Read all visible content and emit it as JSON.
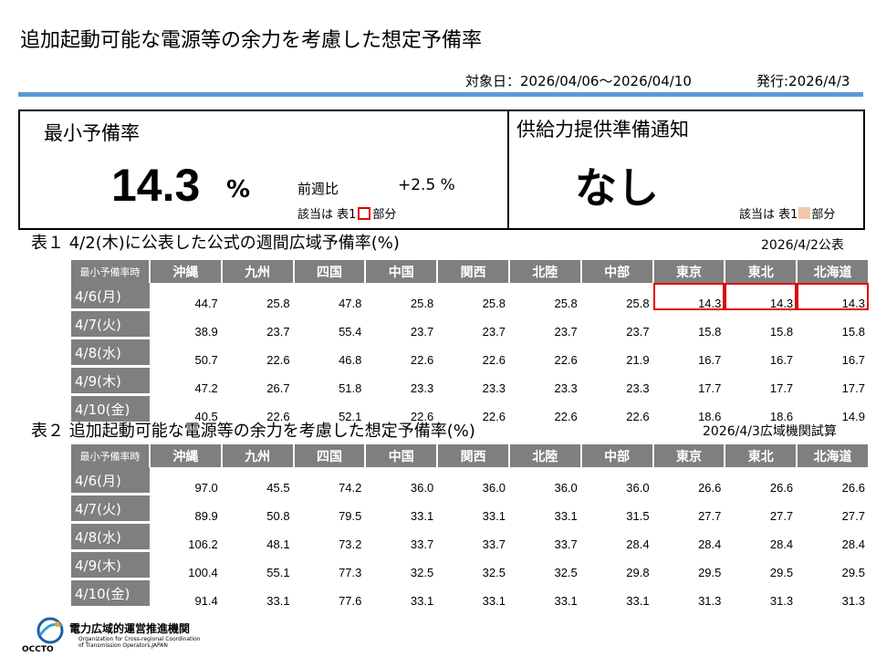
{
  "header": {
    "title": "追加起動可能な電源等の余力を考慮した想定予備率",
    "period": "対象日：2026/04/06～2026/04/10",
    "issued": "発行:2026/4/3"
  },
  "summary": {
    "min_label": "最小予備率",
    "min_value": "14.3",
    "min_unit": "%",
    "wow_label": "前週比",
    "wow_value": "+2.5 %",
    "applies_prefix": "該当は 表1",
    "applies_suffix": "部分",
    "supply_label": "供給力提供準備通知",
    "supply_value": "なし"
  },
  "colors": {
    "header_gray": "#7f7f7f",
    "highlight_red": "#e00000",
    "notice_peach": "#f4c7a8",
    "accent_blue": "#5b9bd5"
  },
  "table1": {
    "caption": "表１ 4/2(木)に公表した公式の週間広域予備率(%)",
    "date": "2026/4/2公表",
    "corner": "最小予備率時",
    "columns": [
      "沖縄",
      "九州",
      "四国",
      "中国",
      "関西",
      "北陸",
      "中部",
      "東京",
      "東北",
      "北海道"
    ],
    "rows": [
      {
        "day": "4/6(月)",
        "values": [
          "44.7",
          "25.8",
          "47.8",
          "25.8",
          "25.8",
          "25.8",
          "25.8",
          "14.3",
          "14.3",
          "14.3"
        ]
      },
      {
        "day": "4/7(火)",
        "values": [
          "38.9",
          "23.7",
          "55.4",
          "23.7",
          "23.7",
          "23.7",
          "23.7",
          "15.8",
          "15.8",
          "15.8"
        ]
      },
      {
        "day": "4/8(水)",
        "values": [
          "50.7",
          "22.6",
          "46.8",
          "22.6",
          "22.6",
          "22.6",
          "21.9",
          "16.7",
          "16.7",
          "16.7"
        ]
      },
      {
        "day": "4/9(木)",
        "values": [
          "47.2",
          "26.7",
          "51.8",
          "23.3",
          "23.3",
          "23.3",
          "23.3",
          "17.7",
          "17.7",
          "17.7"
        ]
      },
      {
        "day": "4/10(金)",
        "values": [
          "40.5",
          "22.6",
          "52.1",
          "22.6",
          "22.6",
          "22.6",
          "22.6",
          "18.6",
          "18.6",
          "14.9"
        ]
      }
    ]
  },
  "table2": {
    "caption": "表２ 追加起動可能な電源等の余力を考慮した想定予備率(%)",
    "date": "2026/4/3広域機関試算",
    "corner": "最小予備率時",
    "columns": [
      "沖縄",
      "九州",
      "四国",
      "中国",
      "関西",
      "北陸",
      "中部",
      "東京",
      "東北",
      "北海道"
    ],
    "rows": [
      {
        "day": "4/6(月)",
        "values": [
          "97.0",
          "45.5",
          "74.2",
          "36.0",
          "36.0",
          "36.0",
          "36.0",
          "26.6",
          "26.6",
          "26.6"
        ]
      },
      {
        "day": "4/7(火)",
        "values": [
          "89.9",
          "50.8",
          "79.5",
          "33.1",
          "33.1",
          "33.1",
          "31.5",
          "27.7",
          "27.7",
          "27.7"
        ]
      },
      {
        "day": "4/8(水)",
        "values": [
          "106.2",
          "48.1",
          "73.2",
          "33.7",
          "33.7",
          "33.7",
          "28.4",
          "28.4",
          "28.4",
          "28.4"
        ]
      },
      {
        "day": "4/9(木)",
        "values": [
          "100.4",
          "55.1",
          "77.3",
          "32.5",
          "32.5",
          "32.5",
          "29.8",
          "29.5",
          "29.5",
          "29.5"
        ]
      },
      {
        "day": "4/10(金)",
        "values": [
          "91.4",
          "33.1",
          "77.6",
          "33.1",
          "33.1",
          "33.1",
          "33.1",
          "31.3",
          "31.3",
          "31.3"
        ]
      }
    ]
  },
  "footer": {
    "logo_text": "OCCTO",
    "org_jp": "電力広域的運営推進機関",
    "org_en": "Organization for Cross-regional Coordination of Transmission Operators,JAPAN"
  }
}
